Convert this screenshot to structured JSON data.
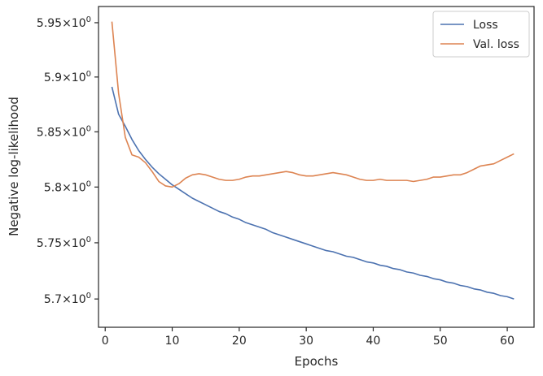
{
  "chart_data": {
    "type": "line",
    "title": "",
    "xlabel": "Epochs",
    "ylabel": "Negative log-likelihood",
    "xlim": [
      -1.0,
      64.0
    ],
    "ylim": [
      5.675,
      5.965
    ],
    "yscale": "log",
    "grid": false,
    "legend_position": "top-right",
    "x_ticks": [
      {
        "value": 0,
        "label": "0"
      },
      {
        "value": 10,
        "label": "10"
      },
      {
        "value": 20,
        "label": "20"
      },
      {
        "value": 30,
        "label": "30"
      },
      {
        "value": 40,
        "label": "40"
      },
      {
        "value": 50,
        "label": "50"
      },
      {
        "value": 60,
        "label": "60"
      }
    ],
    "y_ticks": [
      {
        "value": 5.7,
        "label": "5.7",
        "exp": "0"
      },
      {
        "value": 5.75,
        "label": "5.75",
        "exp": "0"
      },
      {
        "value": 5.8,
        "label": "5.8",
        "exp": "0"
      },
      {
        "value": 5.85,
        "label": "5.85",
        "exp": "0"
      },
      {
        "value": 5.9,
        "label": "5.9",
        "exp": "0"
      },
      {
        "value": 5.95,
        "label": "5.95",
        "exp": "0"
      }
    ],
    "x": [
      1,
      2,
      3,
      4,
      5,
      6,
      7,
      8,
      9,
      10,
      11,
      12,
      13,
      14,
      15,
      16,
      17,
      18,
      19,
      20,
      21,
      22,
      23,
      24,
      25,
      26,
      27,
      28,
      29,
      30,
      31,
      32,
      33,
      34,
      35,
      36,
      37,
      38,
      39,
      40,
      41,
      42,
      43,
      44,
      45,
      46,
      47,
      48,
      49,
      50,
      51,
      52,
      53,
      54,
      55,
      56,
      57,
      58,
      59,
      60,
      61
    ],
    "series": [
      {
        "name": "Loss",
        "color": "#4c72b0",
        "values": [
          5.891,
          5.866,
          5.855,
          5.843,
          5.833,
          5.825,
          5.818,
          5.812,
          5.807,
          5.802,
          5.798,
          5.794,
          5.79,
          5.787,
          5.784,
          5.781,
          5.778,
          5.776,
          5.773,
          5.771,
          5.768,
          5.766,
          5.764,
          5.762,
          5.759,
          5.757,
          5.755,
          5.753,
          5.751,
          5.749,
          5.747,
          5.745,
          5.743,
          5.742,
          5.74,
          5.738,
          5.737,
          5.735,
          5.733,
          5.732,
          5.73,
          5.729,
          5.727,
          5.726,
          5.724,
          5.723,
          5.721,
          5.72,
          5.718,
          5.717,
          5.715,
          5.714,
          5.712,
          5.711,
          5.709,
          5.708,
          5.706,
          5.705,
          5.703,
          5.702,
          5.7
        ]
      },
      {
        "name": "Val. loss",
        "color": "#dd8452",
        "values": [
          5.951,
          5.885,
          5.845,
          5.829,
          5.827,
          5.822,
          5.814,
          5.805,
          5.801,
          5.8,
          5.803,
          5.808,
          5.811,
          5.812,
          5.811,
          5.809,
          5.807,
          5.806,
          5.806,
          5.807,
          5.809,
          5.81,
          5.81,
          5.811,
          5.812,
          5.813,
          5.814,
          5.813,
          5.811,
          5.81,
          5.81,
          5.811,
          5.812,
          5.813,
          5.812,
          5.811,
          5.809,
          5.807,
          5.806,
          5.806,
          5.807,
          5.806,
          5.806,
          5.806,
          5.806,
          5.805,
          5.806,
          5.807,
          5.809,
          5.809,
          5.81,
          5.811,
          5.811,
          5.813,
          5.816,
          5.819,
          5.82,
          5.821,
          5.824,
          5.827,
          5.83
        ]
      }
    ]
  }
}
